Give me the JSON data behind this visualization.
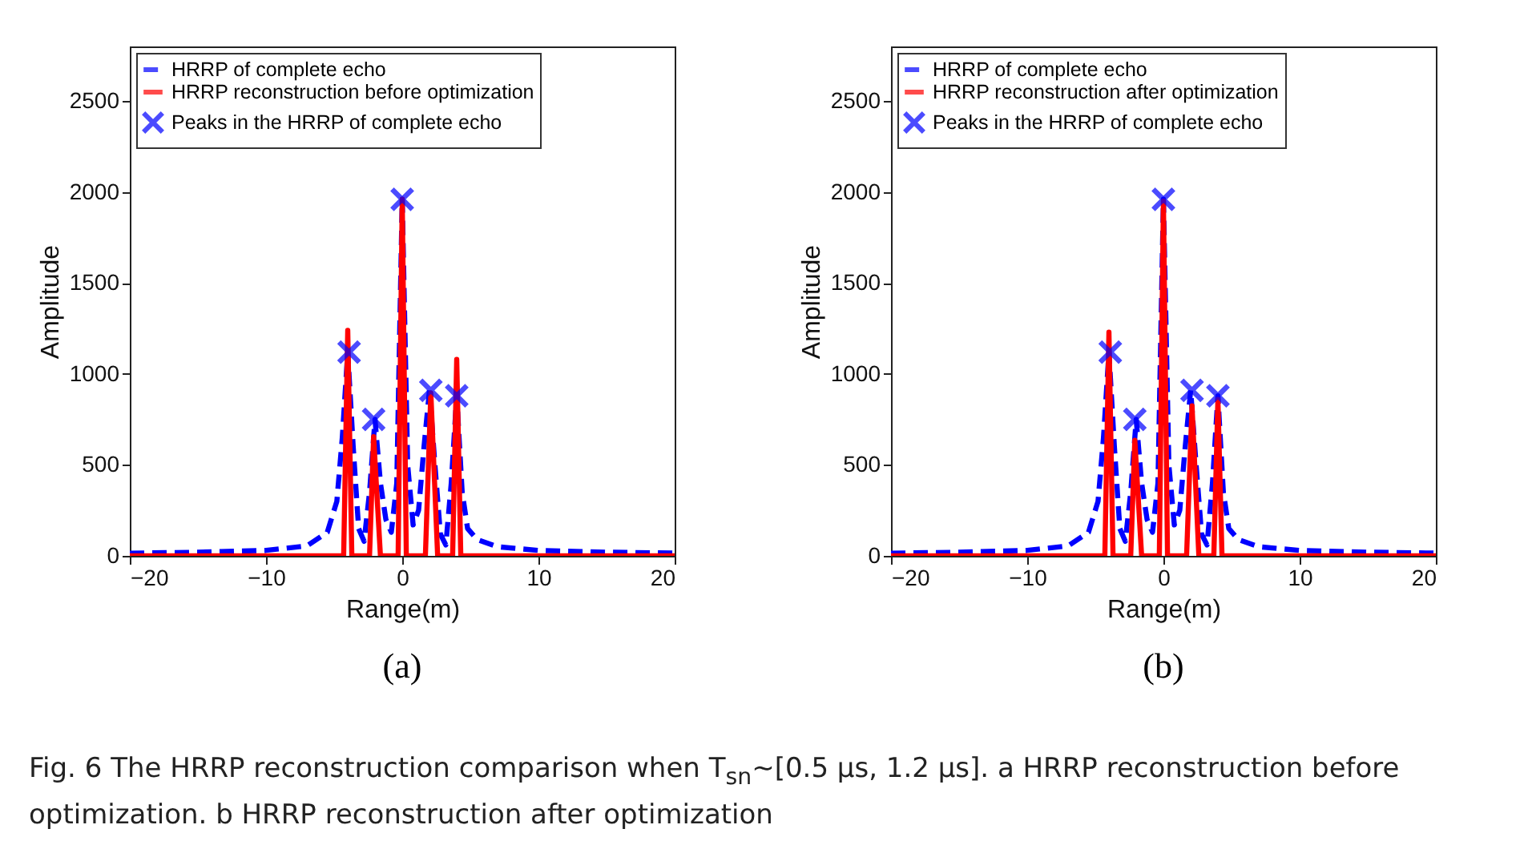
{
  "chart_data": [
    {
      "type": "line",
      "xlabel": "Range(m)",
      "ylabel": "Amplitude",
      "xlim": [
        -20,
        20
      ],
      "xticks": [
        -20,
        -10,
        0,
        10,
        20
      ],
      "ylim": [
        0,
        2800
      ],
      "yticks": [
        0,
        500,
        1000,
        1500,
        2000,
        2500
      ],
      "grid": false,
      "legend": "top left",
      "annotations": [
        "(a)"
      ],
      "series": [
        {
          "name": "HRRP of complete echo",
          "type": "line",
          "line_style": "dashed",
          "color": "#0000ff",
          "x": [
            -20,
            -15,
            -10,
            -7,
            -5.5,
            -4.8,
            -4.4,
            -4,
            -3.6,
            -3.2,
            -2.8,
            -2.4,
            -2,
            -1.6,
            -1.2,
            -0.8,
            -0.4,
            0,
            0.4,
            0.8,
            1.2,
            1.6,
            2,
            2.4,
            2.8,
            3.2,
            3.6,
            4,
            4.4,
            4.8,
            5.5,
            7,
            10,
            15,
            20
          ],
          "values": [
            15,
            20,
            30,
            55,
            130,
            300,
            650,
            1120,
            600,
            150,
            80,
            350,
            750,
            400,
            200,
            130,
            400,
            1960,
            500,
            170,
            250,
            600,
            910,
            500,
            120,
            60,
            400,
            880,
            350,
            150,
            90,
            50,
            30,
            20,
            15
          ]
        },
        {
          "name": "HRRP reconstruction before optimization",
          "type": "line",
          "line_style": "solid",
          "color": "#ff0000",
          "x": [
            -20,
            -4.3,
            -4,
            -3.7,
            -2.4,
            -2.1,
            -1.6,
            -0.3,
            0,
            0.3,
            1.7,
            2.1,
            2.6,
            3.7,
            4,
            4.3,
            20
          ],
          "values": [
            0,
            0,
            1240,
            0,
            0,
            655,
            0,
            0,
            1960,
            0,
            0,
            895,
            0,
            0,
            1080,
            0,
            0
          ]
        },
        {
          "name": "Peaks in the HRRP of complete echo",
          "type": "scatter",
          "marker": "cross",
          "color": "#0000ff",
          "x": [
            -3.9,
            -2.1,
            0,
            2.1,
            4
          ],
          "values": [
            1120,
            750,
            1960,
            910,
            880
          ]
        }
      ]
    },
    {
      "type": "line",
      "xlabel": "Range(m)",
      "ylabel": "Amplitude",
      "xlim": [
        -20,
        20
      ],
      "xticks": [
        -20,
        -10,
        0,
        10,
        20
      ],
      "ylim": [
        0,
        2800
      ],
      "yticks": [
        0,
        500,
        1000,
        1500,
        2000,
        2500
      ],
      "grid": false,
      "legend": "top left",
      "annotations": [
        "(b)",
        "Fig. 6 The HRRP reconstruction comparison when T$_{sn}$~[0.5 μs, 1.2 μs]. a HRRP reconstruction before optimization. b HRRP reconstruction after optimization"
      ],
      "series": [
        {
          "name": "HRRP of complete echo",
          "type": "line",
          "line_style": "dashed",
          "color": "#0000ff",
          "x": [
            -20,
            -15,
            -10,
            -7,
            -5.5,
            -4.8,
            -4.4,
            -4,
            -3.6,
            -3.2,
            -2.8,
            -2.4,
            -2,
            -1.6,
            -1.2,
            -0.8,
            -0.4,
            0,
            0.4,
            0.8,
            1.2,
            1.6,
            2,
            2.4,
            2.8,
            3.2,
            3.6,
            4,
            4.4,
            4.8,
            5.5,
            7,
            10,
            15,
            20
          ],
          "values": [
            15,
            20,
            30,
            55,
            130,
            300,
            650,
            1120,
            600,
            150,
            80,
            350,
            750,
            400,
            200,
            130,
            400,
            1960,
            500,
            170,
            250,
            600,
            910,
            500,
            120,
            60,
            400,
            880,
            350,
            150,
            90,
            50,
            30,
            20,
            15
          ]
        },
        {
          "name": "HRRP reconstruction after optimization",
          "type": "line",
          "line_style": "solid",
          "color": "#ff0000",
          "x": [
            -20,
            -4.3,
            -4,
            -3.7,
            -2.4,
            -2.1,
            -1.6,
            -0.3,
            0,
            0.3,
            1.7,
            2.1,
            2.6,
            3.7,
            4,
            4.3,
            20
          ],
          "values": [
            0,
            0,
            1230,
            0,
            0,
            635,
            0,
            0,
            1950,
            0,
            0,
            825,
            0,
            0,
            860,
            0,
            0
          ]
        },
        {
          "name": "Peaks in the HRRP of complete echo",
          "type": "scatter",
          "marker": "cross",
          "color": "#0000ff",
          "x": [
            -3.9,
            -2.1,
            0,
            2.1,
            4
          ],
          "values": [
            1120,
            750,
            1960,
            910,
            880
          ]
        }
      ]
    }
  ]
}
